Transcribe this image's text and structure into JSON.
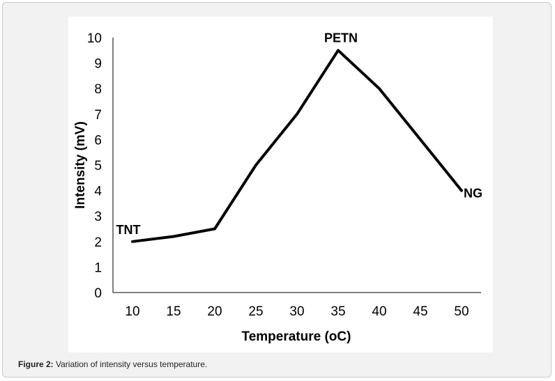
{
  "caption": {
    "label": "Figure 2:",
    "text": " Variation of intensity versus temperature."
  },
  "chart_data": {
    "type": "line",
    "x": [
      10,
      15,
      20,
      25,
      30,
      35,
      40,
      45,
      50
    ],
    "series": [
      {
        "values": [
          2,
          2.2,
          2.5,
          5,
          7,
          9.5,
          8,
          6,
          4
        ]
      }
    ],
    "xlabel": "Temperature (oC)",
    "ylabel": "Intensity (mV)",
    "xticks": [
      "10",
      "15",
      "20",
      "25",
      "30",
      "35",
      "40",
      "45",
      "50"
    ],
    "yticks": [
      "0",
      "1",
      "2",
      "3",
      "4",
      "5",
      "6",
      "7",
      "8",
      "9",
      "10"
    ],
    "ylim": [
      0,
      10
    ],
    "grid": false,
    "line_color": "#000000",
    "annotations": [
      {
        "text": "TNT",
        "x": 10,
        "y": 2
      },
      {
        "text": "PETN",
        "x": 35,
        "y": 9.5
      },
      {
        "text": "NG",
        "x": 50,
        "y": 4
      }
    ]
  }
}
